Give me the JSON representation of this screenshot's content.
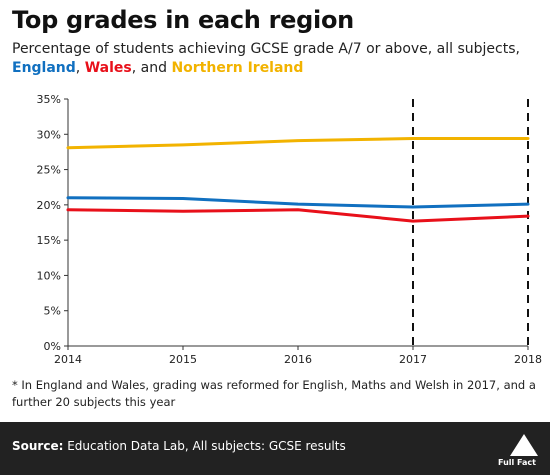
{
  "title": "Top grades in each region",
  "subtitle": "Percentage of students achieving GCSE grade A/7 or above, all subjects,",
  "legend_line": {
    "england": "England",
    "sep1": ", ",
    "wales": "Wales",
    "sep2": ", and ",
    "northern_ireland": "Northern Ireland"
  },
  "footnote": "* In England and Wales, grading was reformed for English, Maths and Welsh in 2017, and a further 20 subjects this year",
  "source": {
    "label": "Source:",
    "text": " Education Data Lab, All subjects: GCSE results"
  },
  "logo_text": "Full Fact",
  "colors": {
    "england": "#1170c0",
    "wales": "#e8101a",
    "northern_ireland": "#f2b300",
    "axis": "#333333"
  },
  "chart_data": {
    "type": "line",
    "x": [
      2014,
      2015,
      2016,
      2017,
      2018
    ],
    "x_tick_labels": [
      "2014",
      "2015",
      "2016",
      "2017",
      "2018"
    ],
    "y_tick_labels": [
      "0%",
      "5%",
      "10%",
      "15%",
      "20%",
      "25%",
      "30%",
      "35%"
    ],
    "ylim": [
      0,
      35
    ],
    "y_ticks": [
      0,
      5,
      10,
      15,
      20,
      25,
      30,
      35
    ],
    "grid": false,
    "reform_markers": [
      2017,
      2018
    ],
    "series": [
      {
        "name": "England",
        "color": "#1170c0",
        "values": [
          21.0,
          20.9,
          20.1,
          19.7,
          20.1
        ]
      },
      {
        "name": "Wales",
        "color": "#e8101a",
        "values": [
          19.3,
          19.1,
          19.3,
          17.7,
          18.4
        ]
      },
      {
        "name": "Northern Ireland",
        "color": "#f2b300",
        "values": [
          28.1,
          28.5,
          29.1,
          29.4,
          29.4
        ]
      }
    ]
  }
}
